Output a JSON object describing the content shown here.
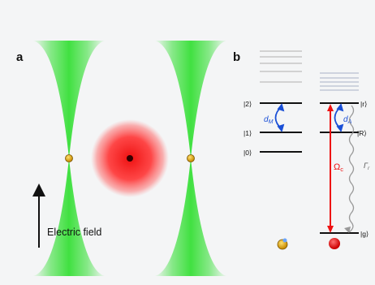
{
  "panels": {
    "a": {
      "label": "a",
      "arrow_text": "Electric field"
    },
    "b": {
      "label": "b",
      "left_levels": [
        "|2⟩",
        "|1⟩",
        "|0⟩"
      ],
      "right_levels": [
        "|r⟩",
        "|R⟩",
        "|g⟩"
      ],
      "coupling_left": "d",
      "coupling_left_sub": "M",
      "coupling_right": "d",
      "coupling_right_sub": "A",
      "rabi": "Ω",
      "rabi_sub": "c",
      "decay": "Γ",
      "decay_sub": "r"
    }
  },
  "colors": {
    "beam": "#22dd22",
    "atom": "#ff2222",
    "molecule": "#e6a100",
    "coupling": "#1a4fd6",
    "rabi": "#ee1111",
    "text": "#111111"
  }
}
